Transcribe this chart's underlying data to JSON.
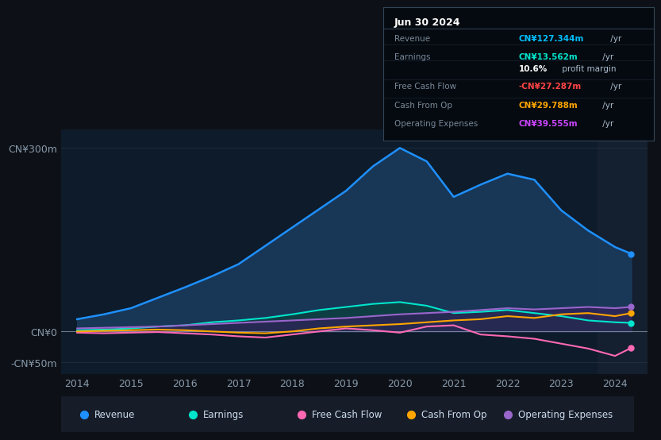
{
  "bg_color": "#0d1117",
  "plot_bg_color": "#0d1b2a",
  "title_box_date": "Jun 30 2024",
  "title_box_rows": [
    {
      "label": "Revenue",
      "value": "CN¥127.344m",
      "unit": " /yr",
      "color": "#00bfff"
    },
    {
      "label": "Earnings",
      "value": "CN¥13.562m",
      "unit": " /yr",
      "color": "#00e5cc"
    },
    {
      "label": "",
      "value": "10.6%",
      "unit": " profit margin",
      "color": "#ffffff"
    },
    {
      "label": "Free Cash Flow",
      "value": "-CN¥27.287m",
      "unit": " /yr",
      "color": "#ff4444"
    },
    {
      "label": "Cash From Op",
      "value": "CN¥29.788m",
      "unit": " /yr",
      "color": "#ffa500"
    },
    {
      "label": "Operating Expenses",
      "value": "CN¥39.555m",
      "unit": " /yr",
      "color": "#cc44ff"
    }
  ],
  "years": [
    2014,
    2014.5,
    2015,
    2015.5,
    2016,
    2016.5,
    2017,
    2017.5,
    2018,
    2018.5,
    2019,
    2019.5,
    2020,
    2020.5,
    2021,
    2021.5,
    2022,
    2022.5,
    2023,
    2023.5,
    2024,
    2024.3
  ],
  "revenue": [
    20,
    28,
    38,
    55,
    72,
    90,
    110,
    140,
    170,
    200,
    230,
    270,
    300,
    278,
    220,
    240,
    258,
    248,
    198,
    165,
    138,
    127
  ],
  "earnings": [
    2,
    3,
    5,
    8,
    10,
    15,
    18,
    22,
    28,
    35,
    40,
    45,
    48,
    42,
    30,
    32,
    35,
    30,
    25,
    18,
    15,
    14
  ],
  "fcf": [
    -2,
    -3,
    -2,
    -1,
    -3,
    -5,
    -8,
    -10,
    -5,
    0,
    5,
    2,
    -2,
    8,
    10,
    -5,
    -8,
    -12,
    -20,
    -28,
    -40,
    -27
  ],
  "cashfromop": [
    0,
    1,
    2,
    3,
    2,
    0,
    -2,
    -3,
    0,
    5,
    8,
    10,
    12,
    15,
    18,
    20,
    25,
    22,
    28,
    30,
    25,
    30
  ],
  "opex": [
    5,
    6,
    7,
    8,
    10,
    12,
    14,
    16,
    18,
    20,
    22,
    25,
    28,
    30,
    32,
    35,
    38,
    36,
    38,
    40,
    38,
    40
  ],
  "revenue_color": "#1e90ff",
  "earnings_color": "#00e5cc",
  "fcf_color": "#ff69b4",
  "cashfromop_color": "#ffa500",
  "opex_color": "#9966cc",
  "revenue_fill": "#1a3a5c",
  "earnings_fill": "#0d4040",
  "opex_fill": "#3a1a5c",
  "ylim": [
    -70,
    330
  ],
  "yticks": [
    -50,
    0,
    300
  ],
  "ytick_labels": [
    "-CN¥50m",
    "CN¥0",
    "CN¥300m"
  ],
  "xlim": [
    2013.7,
    2024.6
  ],
  "xticks": [
    2014,
    2015,
    2016,
    2017,
    2018,
    2019,
    2020,
    2021,
    2022,
    2023,
    2024
  ],
  "legend": [
    {
      "label": "Revenue",
      "color": "#1e90ff"
    },
    {
      "label": "Earnings",
      "color": "#00e5cc"
    },
    {
      "label": "Free Cash Flow",
      "color": "#ff69b4"
    },
    {
      "label": "Cash From Op",
      "color": "#ffa500"
    },
    {
      "label": "Operating Expenses",
      "color": "#9966cc"
    }
  ]
}
